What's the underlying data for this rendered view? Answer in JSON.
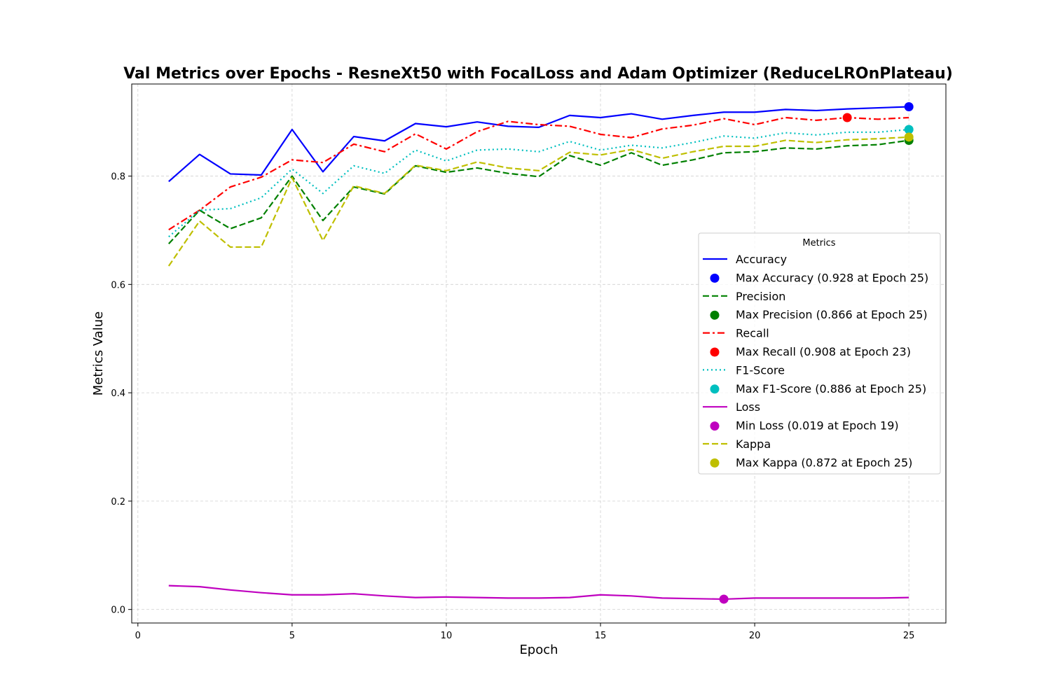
{
  "chart_data": {
    "type": "line",
    "title": "Val Metrics over Epochs - ResneXt50 with FocalLoss and Adam Optimizer (ReduceLROnPlateau)",
    "xlabel": "Epoch",
    "ylabel": "Metrics Value",
    "xlim": [
      -0.2,
      26.2
    ],
    "ylim": [
      -0.025,
      0.97
    ],
    "xticks": [
      0,
      5,
      10,
      15,
      20,
      25
    ],
    "yticks": [
      0.0,
      0.2,
      0.4,
      0.6,
      0.8
    ],
    "xtick_labels": [
      "0",
      "5",
      "10",
      "15",
      "20",
      "25"
    ],
    "ytick_labels": [
      "0.0",
      "0.2",
      "0.4",
      "0.6",
      "0.8"
    ],
    "grid": true,
    "legend": {
      "title": "Metrics",
      "placement": "center-right"
    },
    "x": [
      1,
      2,
      3,
      4,
      5,
      6,
      7,
      8,
      9,
      10,
      11,
      12,
      13,
      14,
      15,
      16,
      17,
      18,
      19,
      20,
      21,
      22,
      23,
      24,
      25
    ],
    "series": [
      {
        "name": "Accuracy",
        "color": "#0000ff",
        "dash": "solid",
        "values": [
          0.79,
          0.84,
          0.804,
          0.802,
          0.886,
          0.808,
          0.873,
          0.865,
          0.897,
          0.891,
          0.9,
          0.892,
          0.89,
          0.912,
          0.908,
          0.915,
          0.905,
          0.912,
          0.918,
          0.918,
          0.923,
          0.921,
          0.924,
          0.926,
          0.928
        ],
        "marker": {
          "label": "Max Accuracy (0.928 at Epoch 25)",
          "x": 25,
          "y": 0.928
        }
      },
      {
        "name": "Precision",
        "color": "#008000",
        "dash": "dashed",
        "values": [
          0.675,
          0.737,
          0.703,
          0.723,
          0.8,
          0.718,
          0.78,
          0.767,
          0.819,
          0.807,
          0.815,
          0.805,
          0.799,
          0.838,
          0.82,
          0.843,
          0.82,
          0.83,
          0.843,
          0.845,
          0.852,
          0.85,
          0.856,
          0.858,
          0.866
        ],
        "marker": {
          "label": "Max Precision (0.866 at Epoch 25)",
          "x": 25,
          "y": 0.866
        }
      },
      {
        "name": "Recall",
        "color": "#ff0000",
        "dash": "dashdot",
        "values": [
          0.701,
          0.737,
          0.78,
          0.798,
          0.83,
          0.825,
          0.859,
          0.845,
          0.878,
          0.85,
          0.882,
          0.901,
          0.895,
          0.892,
          0.877,
          0.871,
          0.887,
          0.894,
          0.906,
          0.895,
          0.908,
          0.903,
          0.908,
          0.905,
          0.908
        ],
        "marker": {
          "label": "Max Recall (0.908 at Epoch 23)",
          "x": 23,
          "y": 0.908
        }
      },
      {
        "name": "F1-Score",
        "color": "#00bfbf",
        "dash": "dotted",
        "values": [
          0.688,
          0.737,
          0.74,
          0.76,
          0.813,
          0.768,
          0.819,
          0.805,
          0.848,
          0.828,
          0.848,
          0.85,
          0.845,
          0.864,
          0.848,
          0.857,
          0.852,
          0.862,
          0.874,
          0.87,
          0.88,
          0.876,
          0.881,
          0.881,
          0.886
        ],
        "marker": {
          "label": "Max F1-Score (0.886 at Epoch 25)",
          "x": 25,
          "y": 0.886
        }
      },
      {
        "name": "Loss",
        "color": "#bf00bf",
        "dash": "solid",
        "values": [
          0.044,
          0.042,
          0.036,
          0.031,
          0.027,
          0.027,
          0.029,
          0.025,
          0.022,
          0.023,
          0.022,
          0.021,
          0.021,
          0.022,
          0.027,
          0.025,
          0.021,
          0.02,
          0.019,
          0.021,
          0.021,
          0.021,
          0.021,
          0.021,
          0.022
        ],
        "marker": {
          "label": "Min Loss (0.019 at Epoch 19)",
          "x": 19,
          "y": 0.019
        }
      },
      {
        "name": "Kappa",
        "color": "#bfbf00",
        "dash": "dashed",
        "values": [
          0.634,
          0.717,
          0.669,
          0.669,
          0.797,
          0.681,
          0.782,
          0.768,
          0.82,
          0.81,
          0.826,
          0.815,
          0.81,
          0.844,
          0.839,
          0.849,
          0.833,
          0.845,
          0.855,
          0.855,
          0.866,
          0.862,
          0.867,
          0.869,
          0.872
        ],
        "marker": {
          "label": "Max Kappa (0.872 at Epoch 25)",
          "x": 25,
          "y": 0.872
        }
      }
    ]
  }
}
